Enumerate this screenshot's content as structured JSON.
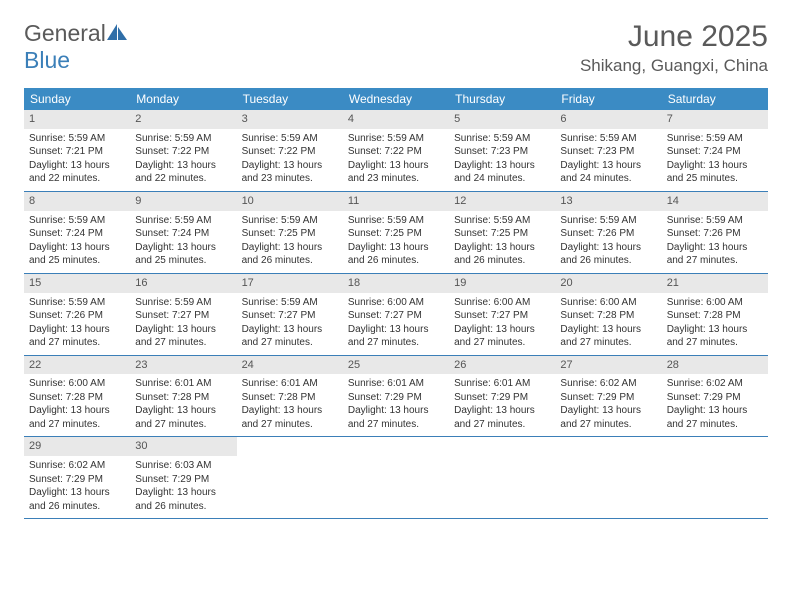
{
  "logo": {
    "general": "General",
    "blue": "Blue"
  },
  "title": "June 2025",
  "location": "Shikang, Guangxi, China",
  "weekdays": [
    "Sunday",
    "Monday",
    "Tuesday",
    "Wednesday",
    "Thursday",
    "Friday",
    "Saturday"
  ],
  "colors": {
    "header_bg": "#3b8bc4",
    "header_text": "#ffffff",
    "daynum_bg": "#e8e8e8",
    "accent": "#3b7fb8",
    "text": "#333333",
    "title_text": "#5a5a5a"
  },
  "days": [
    {
      "n": "1",
      "sunrise": "Sunrise: 5:59 AM",
      "sunset": "Sunset: 7:21 PM",
      "daylight": "Daylight: 13 hours and 22 minutes."
    },
    {
      "n": "2",
      "sunrise": "Sunrise: 5:59 AM",
      "sunset": "Sunset: 7:22 PM",
      "daylight": "Daylight: 13 hours and 22 minutes."
    },
    {
      "n": "3",
      "sunrise": "Sunrise: 5:59 AM",
      "sunset": "Sunset: 7:22 PM",
      "daylight": "Daylight: 13 hours and 23 minutes."
    },
    {
      "n": "4",
      "sunrise": "Sunrise: 5:59 AM",
      "sunset": "Sunset: 7:22 PM",
      "daylight": "Daylight: 13 hours and 23 minutes."
    },
    {
      "n": "5",
      "sunrise": "Sunrise: 5:59 AM",
      "sunset": "Sunset: 7:23 PM",
      "daylight": "Daylight: 13 hours and 24 minutes."
    },
    {
      "n": "6",
      "sunrise": "Sunrise: 5:59 AM",
      "sunset": "Sunset: 7:23 PM",
      "daylight": "Daylight: 13 hours and 24 minutes."
    },
    {
      "n": "7",
      "sunrise": "Sunrise: 5:59 AM",
      "sunset": "Sunset: 7:24 PM",
      "daylight": "Daylight: 13 hours and 25 minutes."
    },
    {
      "n": "8",
      "sunrise": "Sunrise: 5:59 AM",
      "sunset": "Sunset: 7:24 PM",
      "daylight": "Daylight: 13 hours and 25 minutes."
    },
    {
      "n": "9",
      "sunrise": "Sunrise: 5:59 AM",
      "sunset": "Sunset: 7:24 PM",
      "daylight": "Daylight: 13 hours and 25 minutes."
    },
    {
      "n": "10",
      "sunrise": "Sunrise: 5:59 AM",
      "sunset": "Sunset: 7:25 PM",
      "daylight": "Daylight: 13 hours and 26 minutes."
    },
    {
      "n": "11",
      "sunrise": "Sunrise: 5:59 AM",
      "sunset": "Sunset: 7:25 PM",
      "daylight": "Daylight: 13 hours and 26 minutes."
    },
    {
      "n": "12",
      "sunrise": "Sunrise: 5:59 AM",
      "sunset": "Sunset: 7:25 PM",
      "daylight": "Daylight: 13 hours and 26 minutes."
    },
    {
      "n": "13",
      "sunrise": "Sunrise: 5:59 AM",
      "sunset": "Sunset: 7:26 PM",
      "daylight": "Daylight: 13 hours and 26 minutes."
    },
    {
      "n": "14",
      "sunrise": "Sunrise: 5:59 AM",
      "sunset": "Sunset: 7:26 PM",
      "daylight": "Daylight: 13 hours and 27 minutes."
    },
    {
      "n": "15",
      "sunrise": "Sunrise: 5:59 AM",
      "sunset": "Sunset: 7:26 PM",
      "daylight": "Daylight: 13 hours and 27 minutes."
    },
    {
      "n": "16",
      "sunrise": "Sunrise: 5:59 AM",
      "sunset": "Sunset: 7:27 PM",
      "daylight": "Daylight: 13 hours and 27 minutes."
    },
    {
      "n": "17",
      "sunrise": "Sunrise: 5:59 AM",
      "sunset": "Sunset: 7:27 PM",
      "daylight": "Daylight: 13 hours and 27 minutes."
    },
    {
      "n": "18",
      "sunrise": "Sunrise: 6:00 AM",
      "sunset": "Sunset: 7:27 PM",
      "daylight": "Daylight: 13 hours and 27 minutes."
    },
    {
      "n": "19",
      "sunrise": "Sunrise: 6:00 AM",
      "sunset": "Sunset: 7:27 PM",
      "daylight": "Daylight: 13 hours and 27 minutes."
    },
    {
      "n": "20",
      "sunrise": "Sunrise: 6:00 AM",
      "sunset": "Sunset: 7:28 PM",
      "daylight": "Daylight: 13 hours and 27 minutes."
    },
    {
      "n": "21",
      "sunrise": "Sunrise: 6:00 AM",
      "sunset": "Sunset: 7:28 PM",
      "daylight": "Daylight: 13 hours and 27 minutes."
    },
    {
      "n": "22",
      "sunrise": "Sunrise: 6:00 AM",
      "sunset": "Sunset: 7:28 PM",
      "daylight": "Daylight: 13 hours and 27 minutes."
    },
    {
      "n": "23",
      "sunrise": "Sunrise: 6:01 AM",
      "sunset": "Sunset: 7:28 PM",
      "daylight": "Daylight: 13 hours and 27 minutes."
    },
    {
      "n": "24",
      "sunrise": "Sunrise: 6:01 AM",
      "sunset": "Sunset: 7:28 PM",
      "daylight": "Daylight: 13 hours and 27 minutes."
    },
    {
      "n": "25",
      "sunrise": "Sunrise: 6:01 AM",
      "sunset": "Sunset: 7:29 PM",
      "daylight": "Daylight: 13 hours and 27 minutes."
    },
    {
      "n": "26",
      "sunrise": "Sunrise: 6:01 AM",
      "sunset": "Sunset: 7:29 PM",
      "daylight": "Daylight: 13 hours and 27 minutes."
    },
    {
      "n": "27",
      "sunrise": "Sunrise: 6:02 AM",
      "sunset": "Sunset: 7:29 PM",
      "daylight": "Daylight: 13 hours and 27 minutes."
    },
    {
      "n": "28",
      "sunrise": "Sunrise: 6:02 AM",
      "sunset": "Sunset: 7:29 PM",
      "daylight": "Daylight: 13 hours and 27 minutes."
    },
    {
      "n": "29",
      "sunrise": "Sunrise: 6:02 AM",
      "sunset": "Sunset: 7:29 PM",
      "daylight": "Daylight: 13 hours and 26 minutes."
    },
    {
      "n": "30",
      "sunrise": "Sunrise: 6:03 AM",
      "sunset": "Sunset: 7:29 PM",
      "daylight": "Daylight: 13 hours and 26 minutes."
    }
  ],
  "layout": {
    "start_weekday": 0,
    "total_cells": 35
  }
}
